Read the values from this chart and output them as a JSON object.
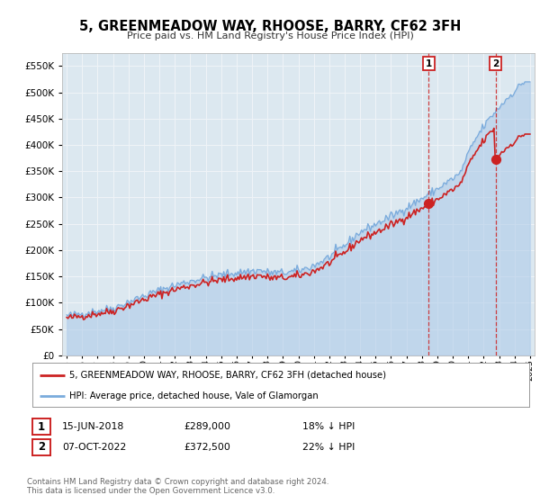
{
  "title": "5, GREENMEADOW WAY, RHOOSE, BARRY, CF62 3FH",
  "subtitle": "Price paid vs. HM Land Registry's House Price Index (HPI)",
  "hpi_label": "HPI: Average price, detached house, Vale of Glamorgan",
  "price_label": "5, GREENMEADOW WAY, RHOOSE, BARRY, CF62 3FH (detached house)",
  "annotation1": {
    "label": "1",
    "date": "15-JUN-2018",
    "price": 289000,
    "pct": "18% ↓ HPI",
    "x": 2018.45
  },
  "annotation2": {
    "label": "2",
    "date": "07-OCT-2022",
    "price": 372500,
    "pct": "22% ↓ HPI",
    "x": 2022.77
  },
  "footnote1": "Contains HM Land Registry data © Crown copyright and database right 2024.",
  "footnote2": "This data is licensed under the Open Government Licence v3.0.",
  "hpi_color": "#7aabdc",
  "hpi_fill_color": "#aac8e8",
  "price_color": "#cc2222",
  "plot_bg_color": "#dce8f0",
  "grid_color": "#f0f4f8",
  "ylim": [
    0,
    575000
  ],
  "xlim": [
    1994.7,
    2025.3
  ]
}
